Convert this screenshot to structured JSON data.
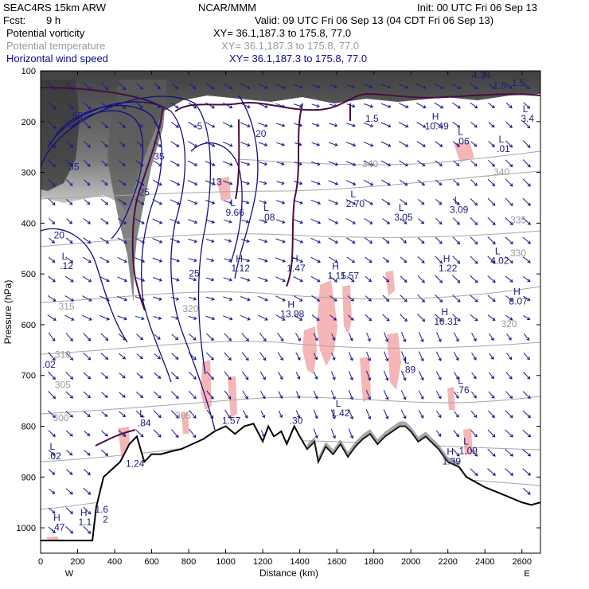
{
  "header": {
    "model": "SEAC4RS 15km ARW",
    "forecast_label": "Fcst:",
    "forecast_value": "9 h",
    "center": "NCAR/MMM",
    "init": "Init: 00 UTC Fri 06 Sep 13",
    "valid": "Valid: 09 UTC Fri 06 Sep 13 (04 CDT Fri 06 Sep 13)"
  },
  "fields": [
    {
      "name": "Potential vorticity",
      "xy": "XY=  36.1,187.3 to 175.8, 77.0",
      "color": "#000000"
    },
    {
      "name": "Potential temperature",
      "xy": "XY=  36.1,187.3 to 175.8, 77.0",
      "color": "#9a9a9a"
    },
    {
      "name": "Horizontal wind speed",
      "xy": "XY=  36.1,187.3 to 175.8, 77.0",
      "color": "#0a0a8c"
    }
  ],
  "chart_data": {
    "type": "cross-section",
    "xlabel": "Distance (km)",
    "ylabel": "Pressure (hPa)",
    "xlim": [
      0,
      2700
    ],
    "ylim": [
      1050,
      100
    ],
    "x_ticks": [
      0,
      200,
      400,
      600,
      800,
      1000,
      1200,
      1400,
      1600,
      1800,
      2000,
      2200,
      2400,
      2600
    ],
    "y_ticks": [
      100,
      200,
      300,
      400,
      500,
      600,
      700,
      800,
      900,
      1000
    ],
    "x_end_labels": {
      "left": "W",
      "right": "E"
    },
    "terrain": [
      [
        0,
        1025
      ],
      [
        150,
        1025
      ],
      [
        280,
        1025
      ],
      [
        300,
        960
      ],
      [
        340,
        900
      ],
      [
        400,
        880
      ],
      [
        430,
        870
      ],
      [
        480,
        835
      ],
      [
        520,
        820
      ],
      [
        560,
        870
      ],
      [
        600,
        855
      ],
      [
        650,
        855
      ],
      [
        700,
        850
      ],
      [
        760,
        845
      ],
      [
        820,
        835
      ],
      [
        880,
        825
      ],
      [
        940,
        810
      ],
      [
        1000,
        800
      ],
      [
        1050,
        815
      ],
      [
        1100,
        800
      ],
      [
        1150,
        795
      ],
      [
        1200,
        830
      ],
      [
        1230,
        800
      ],
      [
        1260,
        820
      ],
      [
        1300,
        810
      ],
      [
        1330,
        835
      ],
      [
        1370,
        800
      ],
      [
        1400,
        820
      ],
      [
        1440,
        845
      ],
      [
        1480,
        830
      ],
      [
        1500,
        870
      ],
      [
        1540,
        840
      ],
      [
        1580,
        855
      ],
      [
        1620,
        835
      ],
      [
        1660,
        860
      ],
      [
        1700,
        840
      ],
      [
        1740,
        825
      ],
      [
        1780,
        815
      ],
      [
        1820,
        835
      ],
      [
        1860,
        820
      ],
      [
        1900,
        810
      ],
      [
        1940,
        800
      ],
      [
        1970,
        800
      ],
      [
        2000,
        810
      ],
      [
        2040,
        830
      ],
      [
        2080,
        820
      ],
      [
        2150,
        845
      ],
      [
        2200,
        870
      ],
      [
        2260,
        880
      ],
      [
        2300,
        900
      ],
      [
        2400,
        920
      ],
      [
        2500,
        935
      ],
      [
        2600,
        950
      ],
      [
        2650,
        955
      ],
      [
        2700,
        950
      ]
    ],
    "annotations": [
      {
        "label": "H",
        "value": ".47",
        "x": 95,
        "p": 1005
      },
      {
        "label": "H",
        "value": "1.1",
        "x": 240,
        "p": 995
      },
      {
        "label": "",
        "value": "1.6",
        "x": 330,
        "p": 970
      },
      {
        "label": "",
        "value": "2",
        "x": 350,
        "p": 990
      },
      {
        "label": "",
        "value": "1.24",
        "x": 510,
        "p": 880
      },
      {
        "label": "L",
        "value": ".84",
        "x": 560,
        "p": 800
      },
      {
        "label": "L",
        "value": ".02",
        "x": 75,
        "p": 865
      },
      {
        "label": "",
        "value": ".02",
        "x": 45,
        "p": 685
      },
      {
        "label": "L",
        "value": ".12",
        "x": 140,
        "p": 490
      },
      {
        "label": "",
        "value": "1.57",
        "x": 1030,
        "p": 795
      },
      {
        "label": "",
        "value": ".30",
        "x": 1380,
        "p": 795
      },
      {
        "label": "L",
        "value": "1.42",
        "x": 1620,
        "p": 780
      },
      {
        "label": "L",
        "value": ".89",
        "x": 1990,
        "p": 695
      },
      {
        "label": "L",
        "value": ".76",
        "x": 2280,
        "p": 735
      },
      {
        "label": "L",
        "value": "1.09",
        "x": 2310,
        "p": 855
      },
      {
        "label": "H",
        "value": "1.39",
        "x": 2220,
        "p": 875
      },
      {
        "label": "H",
        "value": "1.12",
        "x": 1080,
        "p": 495
      },
      {
        "label": "H",
        "value": "1.47",
        "x": 1380,
        "p": 495
      },
      {
        "label": "H",
        "value": "1.15",
        "x": 1600,
        "p": 510
      },
      {
        "label": "",
        "value": "1.57",
        "x": 1670,
        "p": 510
      },
      {
        "label": "H",
        "value": "13.98",
        "x": 1360,
        "p": 585
      },
      {
        "label": "H",
        "value": "10.31",
        "x": 2190,
        "p": 600
      },
      {
        "label": "H",
        "value": "1.22",
        "x": 2200,
        "p": 495
      },
      {
        "label": "L",
        "value": "4.02",
        "x": 2480,
        "p": 480
      },
      {
        "label": "H",
        "value": "8.07",
        "x": 2580,
        "p": 560
      },
      {
        "label": "L",
        "value": "2.70",
        "x": 1700,
        "p": 368
      },
      {
        "label": "L",
        "value": "3.05",
        "x": 1960,
        "p": 395
      },
      {
        "label": "L",
        "value": "3.09",
        "x": 2260,
        "p": 380
      },
      {
        "label": "L",
        "value": "9.66",
        "x": 1050,
        "p": 385
      },
      {
        "label": "L",
        "value": ".08",
        "x": 1230,
        "p": 395
      },
      {
        "label": "H",
        "value": "10.49",
        "x": 2140,
        "p": 215
      },
      {
        "label": "L",
        "value": ".06",
        "x": 2280,
        "p": 245
      },
      {
        "label": "L",
        "value": ".01",
        "x": 2500,
        "p": 260
      },
      {
        "label": "L",
        "value": "3.4",
        "x": 2630,
        "p": 200
      },
      {
        "label": "",
        "value": "1.5",
        "x": 1790,
        "p": 200
      },
      {
        "label": "",
        "value": "4.34",
        "x": 2380,
        "p": 115
      },
      {
        "label": "",
        "value": "1.5",
        "x": 2480,
        "p": 135
      },
      {
        "label": "",
        "value": "1.5",
        "x": 2580,
        "p": 130
      }
    ],
    "temperature_labels": [
      {
        "value": "315",
        "x": 140,
        "p": 570
      },
      {
        "value": "310",
        "x": 120,
        "p": 665
      },
      {
        "value": "305",
        "x": 120,
        "p": 725
      },
      {
        "value": "300",
        "x": 110,
        "p": 790
      },
      {
        "value": "320",
        "x": 810,
        "p": 575
      },
      {
        "value": "340",
        "x": 1780,
        "p": 290
      },
      {
        "value": "340",
        "x": 2490,
        "p": 305
      },
      {
        "value": "335",
        "x": 2580,
        "p": 400
      },
      {
        "value": "330",
        "x": 2580,
        "p": 465
      },
      {
        "value": "320",
        "x": 2530,
        "p": 605
      },
      {
        "value": "305",
        "x": 770,
        "p": 785
      }
    ],
    "wind_labels": [
      {
        "value": "65",
        "x": 200,
        "p": 195
      },
      {
        "value": "35",
        "x": 180,
        "p": 295
      },
      {
        "value": "35",
        "x": 640,
        "p": 275
      },
      {
        "value": "25",
        "x": 560,
        "p": 345
      },
      {
        "value": "20",
        "x": 100,
        "p": 430
      },
      {
        "value": "20",
        "x": 1190,
        "p": 230
      },
      {
        "value": "25",
        "x": 830,
        "p": 505
      },
      {
        "value": "13",
        "x": 950,
        "p": 325
      },
      {
        "value": "5",
        "x": 860,
        "p": 215
      }
    ]
  }
}
